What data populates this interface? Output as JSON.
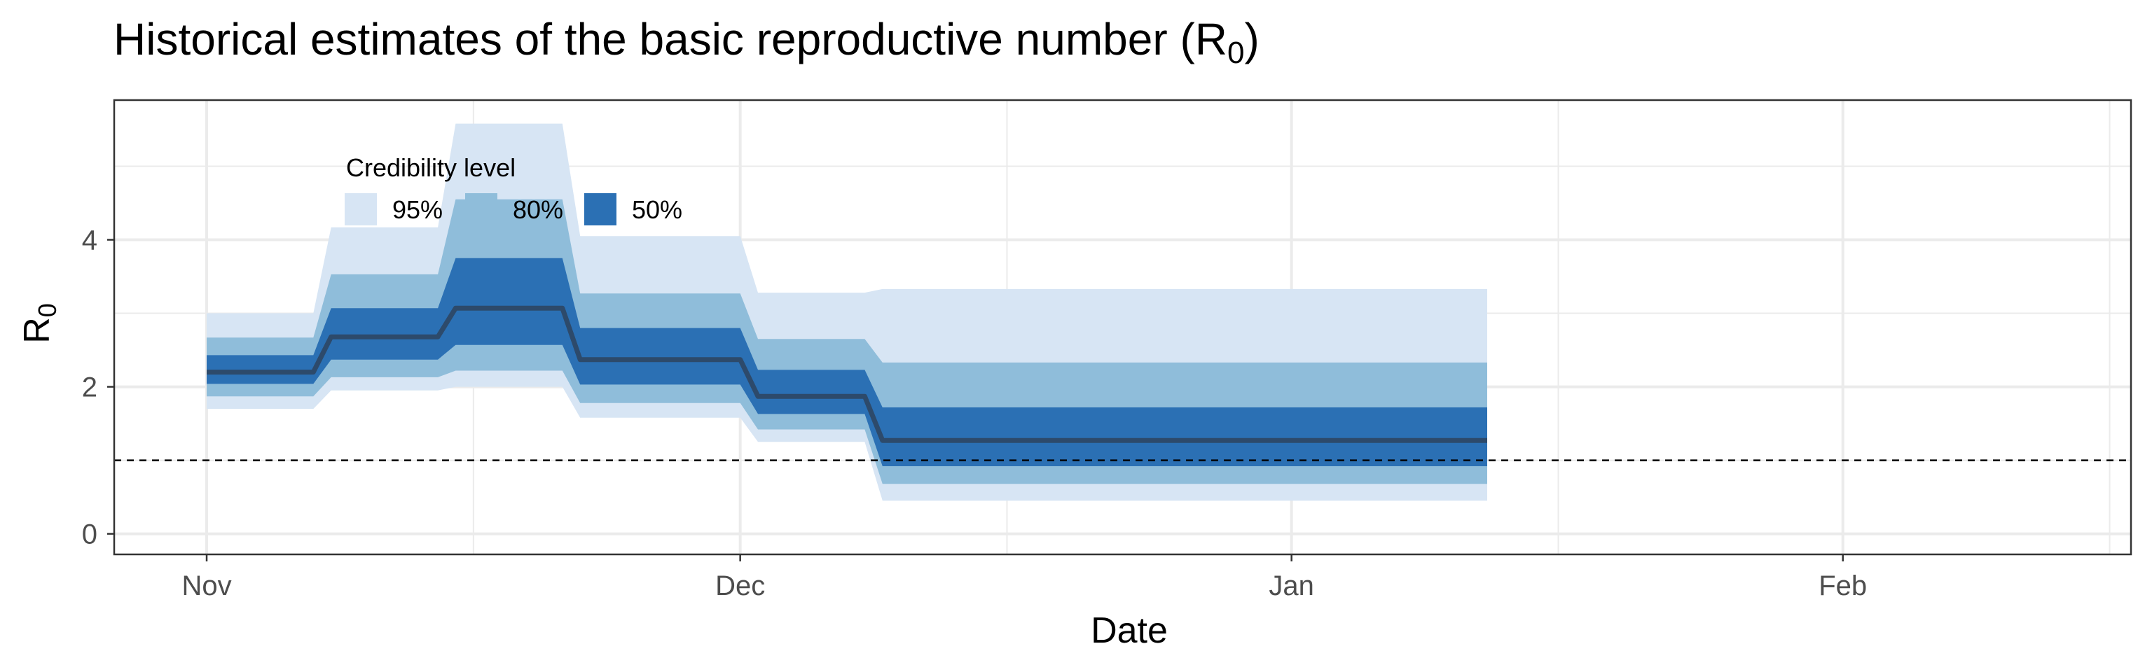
{
  "chart_data": {
    "type": "area",
    "title": "Historical estimates of the basic reproductive number (R",
    "title_subscript": "0",
    "title_suffix": ")",
    "xlabel": "Date",
    "ylabel": "R",
    "ylabel_subscript": "0",
    "x_ticks": [
      {
        "day": 0,
        "label": "Nov"
      },
      {
        "day": 30,
        "label": "Dec"
      },
      {
        "day": 61,
        "label": "Jan"
      },
      {
        "day": 92,
        "label": "Feb"
      }
    ],
    "x_minor_days": [
      15,
      45,
      76,
      107
    ],
    "xlim": [
      -5.2,
      108.2
    ],
    "y_ticks": [
      0,
      2,
      4
    ],
    "ylim": [
      -0.28,
      5.9
    ],
    "threshold": 1,
    "legend_title": "Credibility level",
    "legend_position": "top-left inside",
    "colors": {
      "ci95": "#d7e5f4",
      "ci80": "#8fbdda",
      "ci50": "#2b70b4",
      "median": "#2d4a6b",
      "threshold": "#000000",
      "grid": "#ebebeb",
      "border": "#333333"
    },
    "levels": [
      {
        "name": "95%",
        "key": "ci95"
      },
      {
        "name": "80%",
        "key": "ci80"
      },
      {
        "name": "50%",
        "key": "ci50"
      }
    ],
    "segments": [
      {
        "start": 0,
        "end": 6,
        "median": 2.2,
        "ci50": [
          2.04,
          2.43
        ],
        "ci80": [
          1.87,
          2.67
        ],
        "ci95": [
          1.7,
          3.0
        ]
      },
      {
        "start": 7,
        "end": 13,
        "median": 2.68,
        "ci50": [
          2.37,
          3.07
        ],
        "ci80": [
          2.13,
          3.53
        ],
        "ci95": [
          1.95,
          4.17
        ]
      },
      {
        "start": 14,
        "end": 20,
        "median": 3.07,
        "ci50": [
          2.57,
          3.75
        ],
        "ci80": [
          2.22,
          4.55
        ],
        "ci95": [
          2.0,
          5.58
        ]
      },
      {
        "start": 21,
        "end": 30,
        "median": 2.37,
        "ci50": [
          2.03,
          2.8
        ],
        "ci80": [
          1.78,
          3.27
        ],
        "ci95": [
          1.58,
          4.05
        ]
      },
      {
        "start": 31,
        "end": 37,
        "median": 1.87,
        "ci50": [
          1.63,
          2.23
        ],
        "ci80": [
          1.42,
          2.65
        ],
        "ci95": [
          1.25,
          3.28
        ]
      },
      {
        "start": 38,
        "end": 72,
        "median": 1.27,
        "ci50": [
          0.92,
          1.72
        ],
        "ci80": [
          0.68,
          2.33
        ],
        "ci95": [
          0.45,
          3.33
        ]
      }
    ]
  }
}
